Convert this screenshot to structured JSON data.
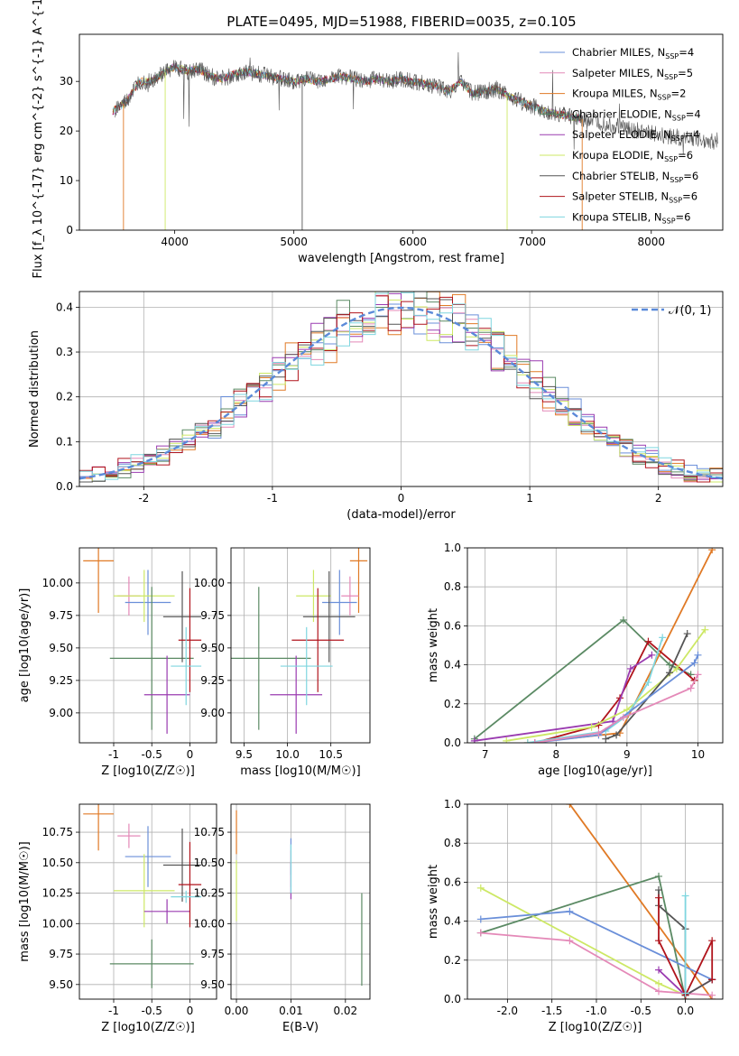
{
  "figure_title": "PLATE=0495, MJD=51988, FIBERID=0035, z=0.105",
  "colors": {
    "chabrier_miles": "#6a8fd9",
    "salpeter_miles": "#e489b8",
    "kroupa_miles": "#e07a26",
    "chabrier_elodie": "#5b8a64",
    "salpeter_elodie": "#9a3bb0",
    "kroupa_elodie": "#cde865",
    "chabrier_stelib": "#555555",
    "salpeter_stelib": "#b0141c",
    "kroupa_stelib": "#7fd6df",
    "gaussian": "#5b8ad9",
    "grid": "#b0b0b0"
  },
  "chart_data": [
    {
      "id": "spectrum",
      "type": "line",
      "title": "PLATE=0495, MJD=51988, FIBERID=0035, z=0.105",
      "xlabel": "wavelength [Angstrom, rest frame]",
      "ylabel": "Flux [f_λ 10^{-17} erg cm^{-2} s^{-1} A^{-1}]",
      "xlim": [
        3200,
        8600
      ],
      "ylim": [
        0,
        39.5
      ],
      "xticks": [
        4000,
        5000,
        6000,
        7000,
        8000
      ],
      "yticks": [
        0,
        10,
        20,
        30
      ],
      "grid": false,
      "legend_position": "top-right",
      "series": [
        {
          "name": "Chabrier MILES, N_SSP=4",
          "key": "chabrier_miles"
        },
        {
          "name": "Salpeter MILES, N_SSP=5",
          "key": "salpeter_miles"
        },
        {
          "name": "Kroupa MILES, N_SSP=2",
          "key": "kroupa_miles"
        },
        {
          "name": "Chabrier ELODIE, N_SSP=4",
          "key": "chabrier_elodie"
        },
        {
          "name": "Salpeter ELODIE, N_SSP=4",
          "key": "salpeter_elodie"
        },
        {
          "name": "Kroupa ELODIE, N_SSP=6",
          "key": "kroupa_elodie"
        },
        {
          "name": "Chabrier STELIB, N_SSP=6",
          "key": "chabrier_stelib"
        },
        {
          "name": "Salpeter STELIB, N_SSP=6",
          "key": "salpeter_stelib"
        },
        {
          "name": "Kroupa STELIB, N_SSP=6",
          "key": "kroupa_stelib"
        }
      ],
      "continuum_points": [
        [
          3480,
          24
        ],
        [
          3600,
          26
        ],
        [
          3700,
          30
        ],
        [
          3800,
          30
        ],
        [
          3900,
          31.5
        ],
        [
          4000,
          33
        ],
        [
          4100,
          32
        ],
        [
          4200,
          32.5
        ],
        [
          4300,
          31
        ],
        [
          4400,
          30.5
        ],
        [
          4500,
          31.5
        ],
        [
          4600,
          32
        ],
        [
          4700,
          31.5
        ],
        [
          4800,
          31
        ],
        [
          4900,
          30.5
        ],
        [
          5000,
          30
        ],
        [
          5100,
          30.5
        ],
        [
          5200,
          30
        ],
        [
          5300,
          30.5
        ],
        [
          5400,
          31
        ],
        [
          5500,
          30.5
        ],
        [
          5600,
          30
        ],
        [
          5700,
          30.5
        ],
        [
          5800,
          30
        ],
        [
          5900,
          30.5
        ],
        [
          6000,
          30
        ],
        [
          6100,
          29.5
        ],
        [
          6200,
          29
        ],
        [
          6300,
          28
        ],
        [
          6400,
          30
        ],
        [
          6500,
          27.5
        ],
        [
          6600,
          28
        ],
        [
          6700,
          28.5
        ],
        [
          6800,
          27
        ],
        [
          6900,
          26
        ],
        [
          7000,
          25
        ],
        [
          7100,
          24
        ],
        [
          7200,
          23.5
        ],
        [
          7300,
          23
        ],
        [
          7400,
          22.5
        ],
        [
          7500,
          22
        ],
        [
          7600,
          21.5
        ],
        [
          7700,
          21
        ],
        [
          7800,
          20.5
        ],
        [
          7900,
          20
        ],
        [
          8000,
          19.5
        ],
        [
          8100,
          19
        ],
        [
          8200,
          18.8
        ],
        [
          8300,
          18.5
        ],
        [
          8400,
          18.3
        ],
        [
          8500,
          18
        ]
      ]
    },
    {
      "id": "residual_histogram",
      "type": "step",
      "xlabel": "(data-model)/error",
      "ylabel": "Normed distribution",
      "xlim": [
        -2.5,
        2.5
      ],
      "ylim": [
        0,
        0.435
      ],
      "xticks": [
        -2,
        -1,
        0,
        1,
        2
      ],
      "yticks": [
        0.0,
        0.1,
        0.2,
        0.3,
        0.4
      ],
      "grid": true,
      "legend": "𝒩(0, 1)",
      "legend_position": "top-right",
      "bin_width": 0.1,
      "base_profile": [
        0.03,
        0.035,
        0.045,
        0.05,
        0.06,
        0.07,
        0.08,
        0.085,
        0.1,
        0.11,
        0.12,
        0.13,
        0.15,
        0.17,
        0.19,
        0.21,
        0.22,
        0.24,
        0.26,
        0.28,
        0.3,
        0.31,
        0.33,
        0.34,
        0.34,
        0.35,
        0.36,
        0.35,
        0.34,
        0.35,
        0.34,
        0.34,
        0.33,
        0.33,
        0.34,
        0.33,
        0.32,
        0.31,
        0.3,
        0.31,
        0.35,
        0.33,
        0.31,
        0.29,
        0.27,
        0.25,
        0.23,
        0.21,
        0.19,
        0.17,
        0.16,
        0.15,
        0.13,
        0.12,
        0.11,
        0.1,
        0.09,
        0.08,
        0.07,
        0.06,
        0.05,
        0.05,
        0.045,
        0.04,
        0.035,
        0.03,
        0.03,
        0.03,
        0.03,
        0.025,
        0.025,
        0.025,
        0.02,
        0.02,
        0.02,
        0.02,
        0.02,
        0.02,
        0.02,
        0.02,
        0.02,
        0.02,
        0.02,
        0.02,
        0.02,
        0.02,
        0.02,
        0.02,
        0.02,
        0.02,
        0.02,
        0.02,
        0.02,
        0.02,
        0.02,
        0.02,
        0.02,
        0.02,
        0.02,
        0.02
      ]
    },
    {
      "id": "age_vs_Z",
      "type": "errorbar",
      "xlabel": "Z [log10(Z/Z☉)]",
      "ylabel": "age  [log10(age/yr)]",
      "xlim": [
        -1.45,
        0.35
      ],
      "ylim": [
        8.77,
        10.27
      ],
      "xticks": [
        -1,
        -0.5,
        0
      ],
      "yticks": [
        9.0,
        9.25,
        9.5,
        9.75,
        10.0
      ],
      "grid": true,
      "points": [
        {
          "key": "kroupa_miles",
          "x": -1.2,
          "xerr": 0.2,
          "y": 10.17,
          "yerr": 0.4
        },
        {
          "key": "salpeter_miles",
          "x": -0.8,
          "xerr": 0.15,
          "y": 9.9,
          "yerr": 0.15
        },
        {
          "key": "chabrier_miles",
          "x": -0.55,
          "xerr": 0.3,
          "y": 9.85,
          "yerr": 0.25
        },
        {
          "key": "kroupa_elodie",
          "x": -0.6,
          "xerr": 0.4,
          "y": 9.9,
          "yerr": 0.2
        },
        {
          "key": "chabrier_elodie",
          "x": -0.5,
          "xerr": 0.55,
          "y": 9.42,
          "yerr": 0.55
        },
        {
          "key": "salpeter_elodie",
          "x": -0.3,
          "xerr": 0.3,
          "y": 9.14,
          "yerr": 0.3
        },
        {
          "key": "chabrier_stelib",
          "x": -0.1,
          "xerr": 0.25,
          "y": 9.74,
          "yerr": 0.35
        },
        {
          "key": "salpeter_stelib",
          "x": 0.0,
          "xerr": 0.15,
          "y": 9.56,
          "yerr": 0.4
        },
        {
          "key": "kroupa_stelib",
          "x": -0.05,
          "xerr": 0.2,
          "y": 9.36,
          "yerr": 0.3
        }
      ]
    },
    {
      "id": "age_vs_mass",
      "type": "errorbar",
      "xlabel": "mass [log10(M/M☉)]",
      "ylabel": "",
      "xlim": [
        9.35,
        10.95
      ],
      "ylim": [
        8.77,
        10.27
      ],
      "xticks": [
        9.5,
        10.0,
        10.5
      ],
      "yticks": [
        9.0,
        9.25,
        9.5,
        9.75,
        10.0
      ],
      "grid": true,
      "points": [
        {
          "key": "kroupa_miles",
          "x": 10.82,
          "xerr": 0.1,
          "y": 10.17,
          "yerr": 0.4
        },
        {
          "key": "salpeter_miles",
          "x": 10.72,
          "xerr": 0.1,
          "y": 9.9,
          "yerr": 0.15
        },
        {
          "key": "chabrier_miles",
          "x": 10.6,
          "xerr": 0.2,
          "y": 9.85,
          "yerr": 0.25
        },
        {
          "key": "kroupa_elodie",
          "x": 10.3,
          "xerr": 0.2,
          "y": 9.9,
          "yerr": 0.2
        },
        {
          "key": "chabrier_elodie",
          "x": 9.67,
          "xerr": 0.6,
          "y": 9.42,
          "yerr": 0.55
        },
        {
          "key": "salpeter_elodie",
          "x": 10.1,
          "xerr": 0.3,
          "y": 9.14,
          "yerr": 0.3
        },
        {
          "key": "chabrier_stelib",
          "x": 10.48,
          "xerr": 0.3,
          "y": 9.74,
          "yerr": 0.35
        },
        {
          "key": "salpeter_stelib",
          "x": 10.35,
          "xerr": 0.3,
          "y": 9.56,
          "yerr": 0.4
        },
        {
          "key": "kroupa_stelib",
          "x": 10.22,
          "xerr": 0.3,
          "y": 9.36,
          "yerr": 0.3
        }
      ]
    },
    {
      "id": "mass_weight_vs_age",
      "type": "line",
      "xlabel": "age  [log10(age/yr)]",
      "ylabel": "mass weight",
      "xlim": [
        6.75,
        10.35
      ],
      "ylim": [
        0,
        1.0
      ],
      "xticks": [
        7,
        8,
        9,
        10
      ],
      "yticks": [
        0.0,
        0.2,
        0.4,
        0.6,
        0.8,
        1.0
      ],
      "grid": true,
      "series": [
        {
          "key": "chabrier_elodie",
          "x": [
            6.85,
            8.95,
            9.6,
            9.9
          ],
          "y": [
            0.02,
            0.63,
            0.4,
            0.35
          ]
        },
        {
          "key": "kroupa_miles",
          "x": [
            7.6,
            8.9,
            10.2
          ],
          "y": [
            0.0,
            0.05,
            0.99
          ]
        },
        {
          "key": "salpeter_stelib",
          "x": [
            7.7,
            8.6,
            8.9,
            9.3,
            9.95
          ],
          "y": [
            0.0,
            0.09,
            0.23,
            0.52,
            0.32
          ]
        },
        {
          "key": "salpeter_elodie",
          "x": [
            6.85,
            8.8,
            9.05,
            9.35
          ],
          "y": [
            0.01,
            0.11,
            0.38,
            0.45
          ]
        },
        {
          "key": "kroupa_elodie",
          "x": [
            7.3,
            8.5,
            9.0,
            9.7,
            10.1
          ],
          "y": [
            0.01,
            0.08,
            0.17,
            0.38,
            0.58
          ]
        },
        {
          "key": "kroupa_stelib",
          "x": [
            7.6,
            8.7,
            9.0,
            9.3,
            9.5
          ],
          "y": [
            0.0,
            0.06,
            0.14,
            0.31,
            0.54
          ]
        },
        {
          "key": "chabrier_stelib",
          "x": [
            8.7,
            8.85,
            9.6,
            9.85
          ],
          "y": [
            0.02,
            0.04,
            0.36,
            0.56
          ]
        },
        {
          "key": "chabrier_miles",
          "x": [
            7.7,
            8.6,
            9.95,
            10.0
          ],
          "y": [
            0.0,
            0.04,
            0.41,
            0.45
          ]
        },
        {
          "key": "salpeter_miles",
          "x": [
            7.7,
            8.6,
            8.95,
            9.9,
            10.0
          ],
          "y": [
            0.0,
            0.05,
            0.13,
            0.28,
            0.35
          ]
        }
      ]
    },
    {
      "id": "mass_vs_Z",
      "type": "errorbar",
      "xlabel": "Z [log10(Z/Z☉)]",
      "ylabel": "mass [log10(M/M☉)]",
      "xlim": [
        -1.45,
        0.35
      ],
      "ylim": [
        9.38,
        10.98
      ],
      "xticks": [
        -1,
        -0.5,
        0
      ],
      "yticks": [
        9.5,
        9.75,
        10.0,
        10.25,
        10.5,
        10.75
      ],
      "grid": true,
      "points": [
        {
          "key": "kroupa_miles",
          "x": -1.2,
          "xerr": 0.2,
          "y": 10.9,
          "yerr": 0.3
        },
        {
          "key": "salpeter_miles",
          "x": -0.8,
          "xerr": 0.15,
          "y": 10.72,
          "yerr": 0.1
        },
        {
          "key": "chabrier_miles",
          "x": -0.55,
          "xerr": 0.3,
          "y": 10.55,
          "yerr": 0.25
        },
        {
          "key": "kroupa_elodie",
          "x": -0.6,
          "xerr": 0.4,
          "y": 10.27,
          "yerr": 0.3
        },
        {
          "key": "chabrier_elodie",
          "x": -0.5,
          "xerr": 0.55,
          "y": 9.67,
          "yerr": 0.2
        },
        {
          "key": "salpeter_elodie",
          "x": -0.3,
          "xerr": 0.3,
          "y": 10.1,
          "yerr": 0.1
        },
        {
          "key": "chabrier_stelib",
          "x": -0.1,
          "xerr": 0.25,
          "y": 10.48,
          "yerr": 0.3
        },
        {
          "key": "salpeter_stelib",
          "x": 0.0,
          "xerr": 0.15,
          "y": 10.32,
          "yerr": 0.35
        },
        {
          "key": "kroupa_stelib",
          "x": -0.05,
          "xerr": 0.2,
          "y": 10.22,
          "yerr": 0.05
        }
      ]
    },
    {
      "id": "mass_vs_ebv",
      "type": "errorbar",
      "xlabel": "E(B-V)",
      "ylabel": "",
      "xlim": [
        -0.001,
        0.0245
      ],
      "ylim": [
        9.38,
        10.98
      ],
      "xticks": [
        0.0,
        0.01,
        0.02
      ],
      "yticks": [
        9.5,
        9.75,
        10.0,
        10.25,
        10.5,
        10.75
      ],
      "grid": true,
      "points": [
        {
          "key": "kroupa_miles",
          "x": 0.0,
          "xerr": 0.0,
          "y": 10.75,
          "yerr": 0.18
        },
        {
          "key": "kroupa_elodie",
          "x": 0.0,
          "xerr": 0.0,
          "y": 10.27,
          "yerr": 0.25
        },
        {
          "key": "chabrier_miles",
          "x": 0.01,
          "xerr": 0.0,
          "y": 10.55,
          "yerr": 0.15
        },
        {
          "key": "salpeter_miles",
          "x": 0.01,
          "xerr": 0.0,
          "y": 10.45,
          "yerr": 0.15
        },
        {
          "key": "salpeter_elodie",
          "x": 0.01,
          "xerr": 0.0,
          "y": 10.35,
          "yerr": 0.15
        },
        {
          "key": "kroupa_stelib",
          "x": 0.01,
          "xerr": 0.0,
          "y": 10.45,
          "yerr": 0.2
        },
        {
          "key": "chabrier_elodie",
          "x": 0.023,
          "xerr": 0.0,
          "y": 9.87,
          "yerr": 0.38
        }
      ]
    },
    {
      "id": "mass_weight_vs_Z",
      "type": "line",
      "xlabel": "Z [log10(Z/Z☉)]",
      "ylabel": "mass weight",
      "xlim": [
        -2.45,
        0.42
      ],
      "ylim": [
        0,
        1.0
      ],
      "xticks": [
        -2.0,
        -1.5,
        -1.0,
        -0.5,
        0.0
      ],
      "yticks": [
        0.0,
        0.2,
        0.4,
        0.6,
        0.8,
        1.0
      ],
      "grid": true,
      "series": [
        {
          "key": "kroupa_miles",
          "x": [
            -1.3,
            0.3
          ],
          "y": [
            1.0,
            0.0
          ]
        },
        {
          "key": "chabrier_elodie",
          "x": [
            -2.3,
            -0.3,
            0.0
          ],
          "y": [
            0.34,
            0.63,
            0.0
          ]
        },
        {
          "key": "kroupa_elodie",
          "x": [
            -2.3,
            -0.3,
            0.0
          ],
          "y": [
            0.57,
            0.08,
            0.02
          ]
        },
        {
          "key": "chabrier_miles",
          "x": [
            -2.3,
            -1.3,
            0.3
          ],
          "y": [
            0.41,
            0.45,
            0.1
          ]
        },
        {
          "key": "salpeter_miles",
          "x": [
            -2.3,
            -1.3,
            -0.3,
            0.3
          ],
          "y": [
            0.34,
            0.3,
            0.04,
            0.02
          ]
        },
        {
          "key": "salpeter_elodie",
          "x": [
            -0.3,
            0.0,
            0.3
          ],
          "y": [
            0.15,
            0.02,
            0.1
          ]
        },
        {
          "key": "chabrier_stelib",
          "x": [
            -0.3,
            -0.3,
            0.0,
            0.0,
            0.3
          ],
          "y": [
            0.56,
            0.48,
            0.36,
            0.02,
            0.1
          ]
        },
        {
          "key": "salpeter_stelib",
          "x": [
            -0.3,
            -0.3,
            0.0,
            0.3,
            0.3
          ],
          "y": [
            0.52,
            0.3,
            0.02,
            0.3,
            0.1
          ]
        },
        {
          "key": "kroupa_stelib",
          "x": [
            0.0,
            0.0
          ],
          "y": [
            0.53,
            0.03
          ]
        }
      ]
    }
  ]
}
